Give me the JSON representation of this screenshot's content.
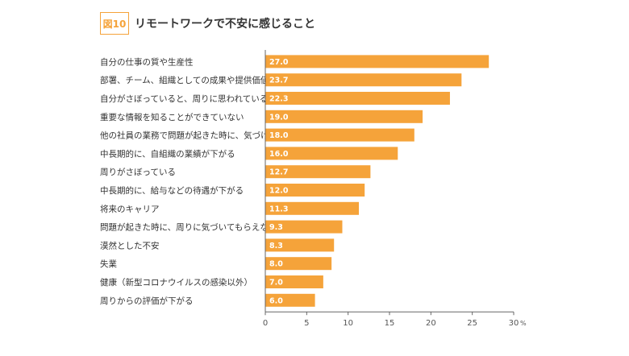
{
  "header": {
    "figure_label": "図10",
    "title": "リモートワークで不安に感じること"
  },
  "chart_data": {
    "type": "bar",
    "orientation": "horizontal",
    "title": "リモートワークで不安に感じること",
    "categories": [
      "自分の仕事の質や生産性",
      "部署、チーム、組織としての成果や提供価値",
      "自分がさぼっていると、周りに思われている",
      "重要な情報を知ることができていない",
      "他の社員の業務で問題が起きた時に、気づけない",
      "中長期的に、自組織の業績が下がる",
      "周りがさぼっている",
      "中長期的に、給与などの待遇が下がる",
      "将来のキャリア",
      "問題が起きた時に、周りに気づいてもらえない",
      "漠然とした不安",
      "失業",
      "健康（新型コロナウイルスの感染以外）",
      "周りからの評価が下がる"
    ],
    "values": [
      27.0,
      23.7,
      22.3,
      19.0,
      18.0,
      16.0,
      12.7,
      12.0,
      11.3,
      9.3,
      8.3,
      8.0,
      7.0,
      6.0
    ],
    "value_labels": [
      "27.0",
      "23.7",
      "22.3",
      "19.0",
      "18.0",
      "16.0",
      "12.7",
      "12.0",
      "11.3",
      "9.3",
      "8.3",
      "8.0",
      "7.0",
      "6.0"
    ],
    "xlim": [
      0,
      30
    ],
    "xticks": [
      "0",
      "5",
      "10",
      "15",
      "20",
      "25",
      "30"
    ],
    "x_unit": "%",
    "bar_color": "#f5a33a",
    "axis_color": "#666666",
    "grid": false
  }
}
